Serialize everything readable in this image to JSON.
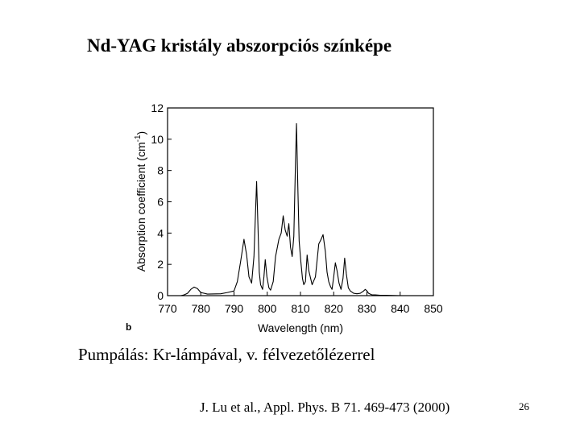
{
  "slide": {
    "title": "Nd-YAG kristály abszorpciós színképe",
    "caption": "Pumpálás: Kr-lámpával, v. félvezetőlézerrel",
    "reference": "J. Lu et al., Appl. Phys. B 71. 469-473 (2000)",
    "page_number": "26"
  },
  "chart_data": {
    "type": "line",
    "panel_label": "b",
    "xlabel": "Wavelength (nm)",
    "ylabel_main": "Absorption coefficient (cm",
    "ylabel_sup": "-1",
    "ylabel_end": ")",
    "xlim": [
      770,
      850
    ],
    "ylim": [
      0,
      12
    ],
    "xticks": [
      770,
      780,
      790,
      800,
      810,
      820,
      830,
      840,
      850
    ],
    "yticks": [
      0,
      2,
      4,
      6,
      8,
      10,
      12
    ],
    "grid": false,
    "series": [
      {
        "x": [
          770,
          774,
          775,
          776,
          777,
          778,
          779,
          780,
          782,
          786,
          788,
          790,
          791,
          792,
          793,
          793.8,
          794.5,
          795.3,
          796,
          796.8,
          797.2,
          797.6,
          798,
          798.6,
          799,
          799.4,
          799.9,
          800.5,
          801,
          801.8,
          802.5,
          803.5,
          804.2,
          804.8,
          805.4,
          806,
          806.5,
          807,
          807.5,
          808,
          808.5,
          808.8,
          809.2,
          809.6,
          810.1,
          810.6,
          811,
          811.5,
          812,
          812.5,
          813.5,
          814.5,
          815.5,
          816.2,
          816.8,
          817.5,
          818,
          818.5,
          819,
          819.5,
          820,
          820.5,
          821,
          821.6,
          822.2,
          822.8,
          823.3,
          823.8,
          824.4,
          825,
          826,
          827,
          828,
          829,
          829.5,
          830,
          830.5,
          831.5,
          832.5,
          834,
          836,
          840,
          845,
          850
        ],
        "y": [
          0,
          0,
          0.05,
          0.15,
          0.4,
          0.55,
          0.45,
          0.2,
          0.1,
          0.12,
          0.2,
          0.3,
          0.9,
          2.2,
          3.6,
          2.6,
          1.2,
          0.8,
          2.5,
          7.3,
          4.5,
          1.5,
          0.7,
          0.4,
          1.2,
          2.3,
          1.2,
          0.5,
          0.35,
          0.9,
          2.5,
          3.6,
          4.0,
          5.1,
          4.2,
          3.8,
          4.6,
          3.1,
          2.5,
          3.8,
          8.5,
          11.0,
          7.0,
          3.5,
          2.2,
          1.1,
          0.7,
          0.9,
          2.6,
          1.6,
          0.7,
          1.2,
          3.3,
          3.6,
          3.9,
          2.8,
          1.5,
          0.9,
          0.6,
          0.4,
          1.2,
          2.1,
          1.6,
          0.8,
          0.4,
          1.1,
          2.4,
          1.4,
          0.5,
          0.3,
          0.15,
          0.12,
          0.15,
          0.3,
          0.4,
          0.3,
          0.15,
          0.05,
          0.05,
          0.02,
          0.02,
          0,
          0,
          0
        ]
      }
    ]
  }
}
